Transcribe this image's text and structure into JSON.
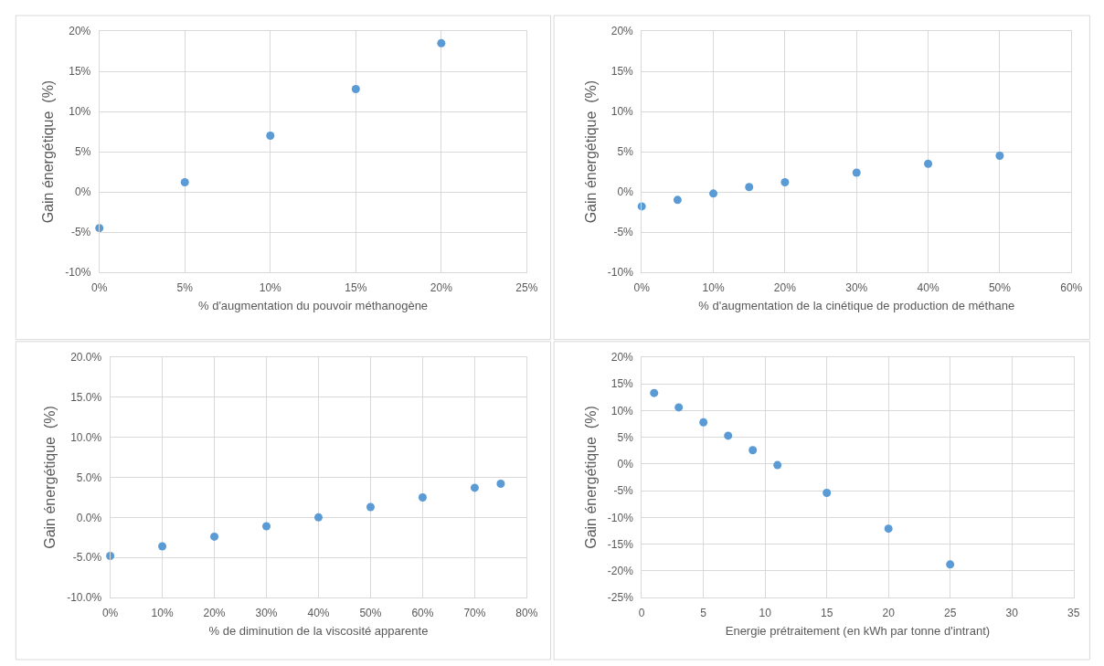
{
  "chart_data": [
    {
      "type": "scatter",
      "xlabel": "% d'augmentation du pouvoir méthanogène",
      "ylabel": "Gain énergétique  (%)",
      "x": [
        0,
        5,
        10,
        15,
        20
      ],
      "series": [
        {
          "color": "#5b9bd5",
          "values": [
            -4.5,
            1.2,
            7.0,
            12.8,
            18.5
          ]
        }
      ],
      "xlim": [
        0,
        25
      ],
      "xticks": [
        {
          "value": 0,
          "label": "0%"
        },
        {
          "value": 5,
          "label": "5%"
        },
        {
          "value": 10,
          "label": "10%"
        },
        {
          "value": 15,
          "label": "15%"
        },
        {
          "value": 20,
          "label": "20%"
        },
        {
          "value": 25,
          "label": "25%"
        }
      ],
      "ylim": [
        -10,
        20
      ],
      "yticks": [
        {
          "value": -10,
          "label": "-10%"
        },
        {
          "value": -5,
          "label": "-5%"
        },
        {
          "value": 0,
          "label": "0%"
        },
        {
          "value": 5,
          "label": "5%"
        },
        {
          "value": 10,
          "label": "10%"
        },
        {
          "value": 15,
          "label": "15%"
        },
        {
          "value": 20,
          "label": "20%"
        }
      ],
      "grid": true,
      "marker": "circle"
    },
    {
      "type": "scatter",
      "xlabel": "% d'augmentation de la cinétique de production de méthane",
      "ylabel": "Gain énergétique  (%)",
      "x": [
        0,
        5,
        10,
        15,
        20,
        30,
        40,
        50
      ],
      "series": [
        {
          "color": "#5b9bd5",
          "values": [
            -1.8,
            -1.0,
            -0.2,
            0.6,
            1.2,
            2.4,
            3.5,
            4.5
          ]
        }
      ],
      "xlim": [
        0,
        60
      ],
      "xticks": [
        {
          "value": 0,
          "label": "0%"
        },
        {
          "value": 10,
          "label": "10%"
        },
        {
          "value": 20,
          "label": "20%"
        },
        {
          "value": 30,
          "label": "30%"
        },
        {
          "value": 40,
          "label": "40%"
        },
        {
          "value": 50,
          "label": "50%"
        },
        {
          "value": 60,
          "label": "60%"
        }
      ],
      "ylim": [
        -10,
        20
      ],
      "yticks": [
        {
          "value": -10,
          "label": "-10%"
        },
        {
          "value": -5,
          "label": "-5%"
        },
        {
          "value": 0,
          "label": "0%"
        },
        {
          "value": 5,
          "label": "5%"
        },
        {
          "value": 10,
          "label": "10%"
        },
        {
          "value": 15,
          "label": "15%"
        },
        {
          "value": 20,
          "label": "20%"
        }
      ],
      "grid": true,
      "marker": "circle"
    },
    {
      "type": "scatter",
      "xlabel": "% de diminution de la viscosité apparente",
      "ylabel": "Gain énergétique  (%)",
      "x": [
        0,
        10,
        20,
        30,
        40,
        50,
        60,
        70,
        75
      ],
      "series": [
        {
          "color": "#5b9bd5",
          "values": [
            -4.8,
            -3.6,
            -2.4,
            -1.1,
            0.0,
            1.3,
            2.5,
            3.7,
            4.2
          ]
        }
      ],
      "xlim": [
        0,
        80
      ],
      "xticks": [
        {
          "value": 0,
          "label": "0%"
        },
        {
          "value": 10,
          "label": "10%"
        },
        {
          "value": 20,
          "label": "20%"
        },
        {
          "value": 30,
          "label": "30%"
        },
        {
          "value": 40,
          "label": "40%"
        },
        {
          "value": 50,
          "label": "50%"
        },
        {
          "value": 60,
          "label": "60%"
        },
        {
          "value": 70,
          "label": "70%"
        },
        {
          "value": 80,
          "label": "80%"
        }
      ],
      "ylim": [
        -10,
        20
      ],
      "yticks": [
        {
          "value": -10,
          "label": "-10.0%"
        },
        {
          "value": -5,
          "label": "-5.0%"
        },
        {
          "value": 0,
          "label": "0.0%"
        },
        {
          "value": 5,
          "label": "5.0%"
        },
        {
          "value": 10,
          "label": "10.0%"
        },
        {
          "value": 15,
          "label": "15.0%"
        },
        {
          "value": 20,
          "label": "20.0%"
        }
      ],
      "grid": true,
      "marker": "circle"
    },
    {
      "type": "scatter",
      "xlabel": "Energie prétraitement (en kWh par tonne d'intrant)",
      "ylabel": "Gain énergétique  (%)",
      "x": [
        1,
        3,
        5,
        7,
        9,
        11,
        15,
        20,
        25
      ],
      "series": [
        {
          "color": "#5b9bd5",
          "values": [
            13.3,
            10.6,
            7.8,
            5.3,
            2.6,
            -0.2,
            -5.4,
            -12.1,
            -18.8
          ]
        }
      ],
      "xlim": [
        0,
        35
      ],
      "xticks": [
        0,
        5,
        10,
        15,
        20,
        25,
        30,
        35
      ],
      "ylim": [
        -25,
        20
      ],
      "yticks": [
        {
          "value": -25,
          "label": "-25%"
        },
        {
          "value": -20,
          "label": "-20%"
        },
        {
          "value": -15,
          "label": "-15%"
        },
        {
          "value": -10,
          "label": "-10%"
        },
        {
          "value": -5,
          "label": "-5%"
        },
        {
          "value": 0,
          "label": "0%"
        },
        {
          "value": 5,
          "label": "5%"
        },
        {
          "value": 10,
          "label": "10%"
        },
        {
          "value": 15,
          "label": "15%"
        },
        {
          "value": 20,
          "label": "20%"
        }
      ],
      "grid": true,
      "marker": "circle"
    }
  ]
}
